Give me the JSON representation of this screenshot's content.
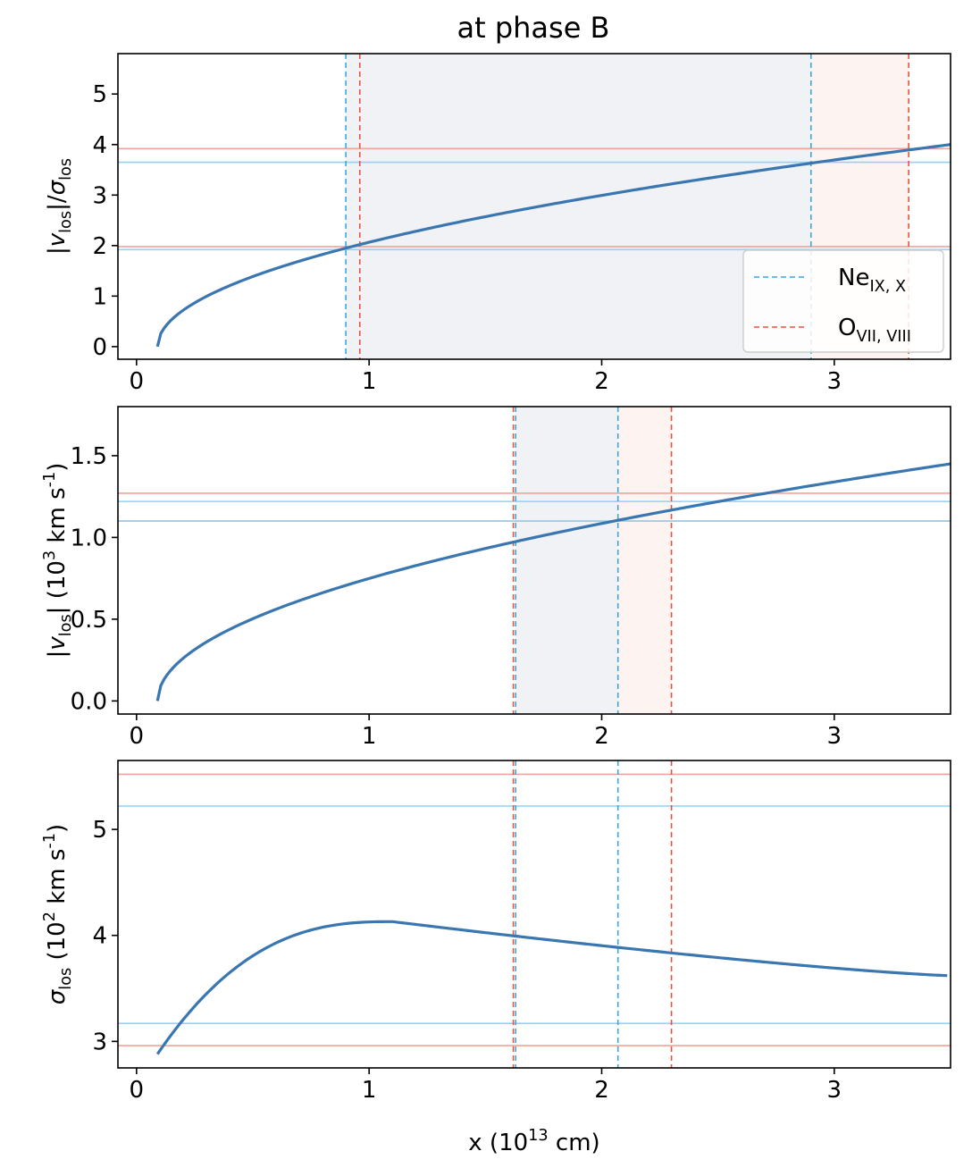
{
  "colors": {
    "curve": "#3a76af",
    "ne": "#3ba7e6",
    "o": "#e8553f",
    "ne_hline": "#8fd3f5",
    "o_hline": "#f2a29a",
    "ne_band": "#dde3ea",
    "o_band": "#fbe9e5"
  },
  "chart_data": [
    {
      "type": "line",
      "title": "at phase B",
      "ylabel": {
        "main": "|v",
        "sub": "los",
        "tail": "|/σ",
        "sub2": "los"
      },
      "xlim": [
        -0.08,
        3.5
      ],
      "ylim": [
        -0.25,
        5.8
      ],
      "xticks": [
        0,
        1,
        2,
        3
      ],
      "yticks": [
        0,
        1,
        2,
        3,
        4,
        5
      ],
      "ytick_format": 0,
      "series": [
        {
          "name": "ratio",
          "x0": 0.09,
          "x1": 3.5,
          "y_at_x1": 4.0,
          "shape": "sqrt"
        }
      ],
      "vlines": {
        "ne": [
          0.9,
          2.9
        ],
        "o": [
          0.96,
          3.32
        ]
      },
      "hlines": {
        "ne": [
          1.92,
          3.65
        ],
        "o": [
          1.98,
          3.92
        ]
      },
      "bands": {
        "ne": [
          0.9,
          2.9
        ],
        "o": [
          2.9,
          3.32
        ]
      },
      "legend": {
        "position": "lower-right",
        "entries": [
          {
            "name": "ne",
            "base": "Ne",
            "sub": "IX, X"
          },
          {
            "name": "o",
            "base": "O",
            "sub": "VII, VIII"
          }
        ]
      }
    },
    {
      "type": "line",
      "ylabel": {
        "main": "|v",
        "sub": "los",
        "tail": "|  (10",
        "sup": "3",
        "tail2": " km s",
        "sup2": "-1",
        "tail3": ")"
      },
      "xlim": [
        -0.08,
        3.5
      ],
      "ylim": [
        -0.08,
        1.8
      ],
      "xticks": [
        0,
        1,
        2,
        3
      ],
      "yticks": [
        0.0,
        0.5,
        1.0,
        1.5
      ],
      "ytick_format": 1,
      "series": [
        {
          "name": "vlos",
          "x0": 0.09,
          "x1": 3.5,
          "y_at_x1": 1.45,
          "shape": "sqrt"
        }
      ],
      "vlines": {
        "ne": [
          1.63,
          2.07
        ],
        "o": [
          1.62,
          2.3
        ]
      },
      "hlines": {
        "ne": [
          1.1,
          1.22
        ],
        "o": [
          1.1,
          1.27
        ]
      },
      "bands": {
        "ne": [
          1.63,
          2.07
        ],
        "o": [
          2.07,
          2.3
        ]
      }
    },
    {
      "type": "line",
      "ylabel": {
        "main": "σ",
        "sub": "los",
        "tail": "  (10",
        "sup": "2",
        "tail2": " km s",
        "sup2": "-1",
        "tail3": ")"
      },
      "xlabel": {
        "main": "x (10",
        "sup": "13",
        "tail": " cm)"
      },
      "xlim": [
        -0.08,
        3.5
      ],
      "ylim": [
        2.75,
        5.65
      ],
      "xticks": [
        0,
        1,
        2,
        3
      ],
      "yticks": [
        3,
        4,
        5
      ],
      "ytick_format": 0,
      "series": [
        {
          "name": "sigma",
          "x0": 0.09,
          "x1": 3.5,
          "y_start": 2.88,
          "y_peak": 4.13,
          "x_peak": 1.1,
          "y_end": 3.62,
          "shape": "hump"
        }
      ],
      "vlines": {
        "ne": [
          1.63,
          2.07
        ],
        "o": [
          1.62,
          2.3
        ]
      },
      "hlines": {
        "ne": [
          3.17,
          5.22
        ],
        "o": [
          2.96,
          5.52
        ]
      },
      "bands": null
    }
  ]
}
